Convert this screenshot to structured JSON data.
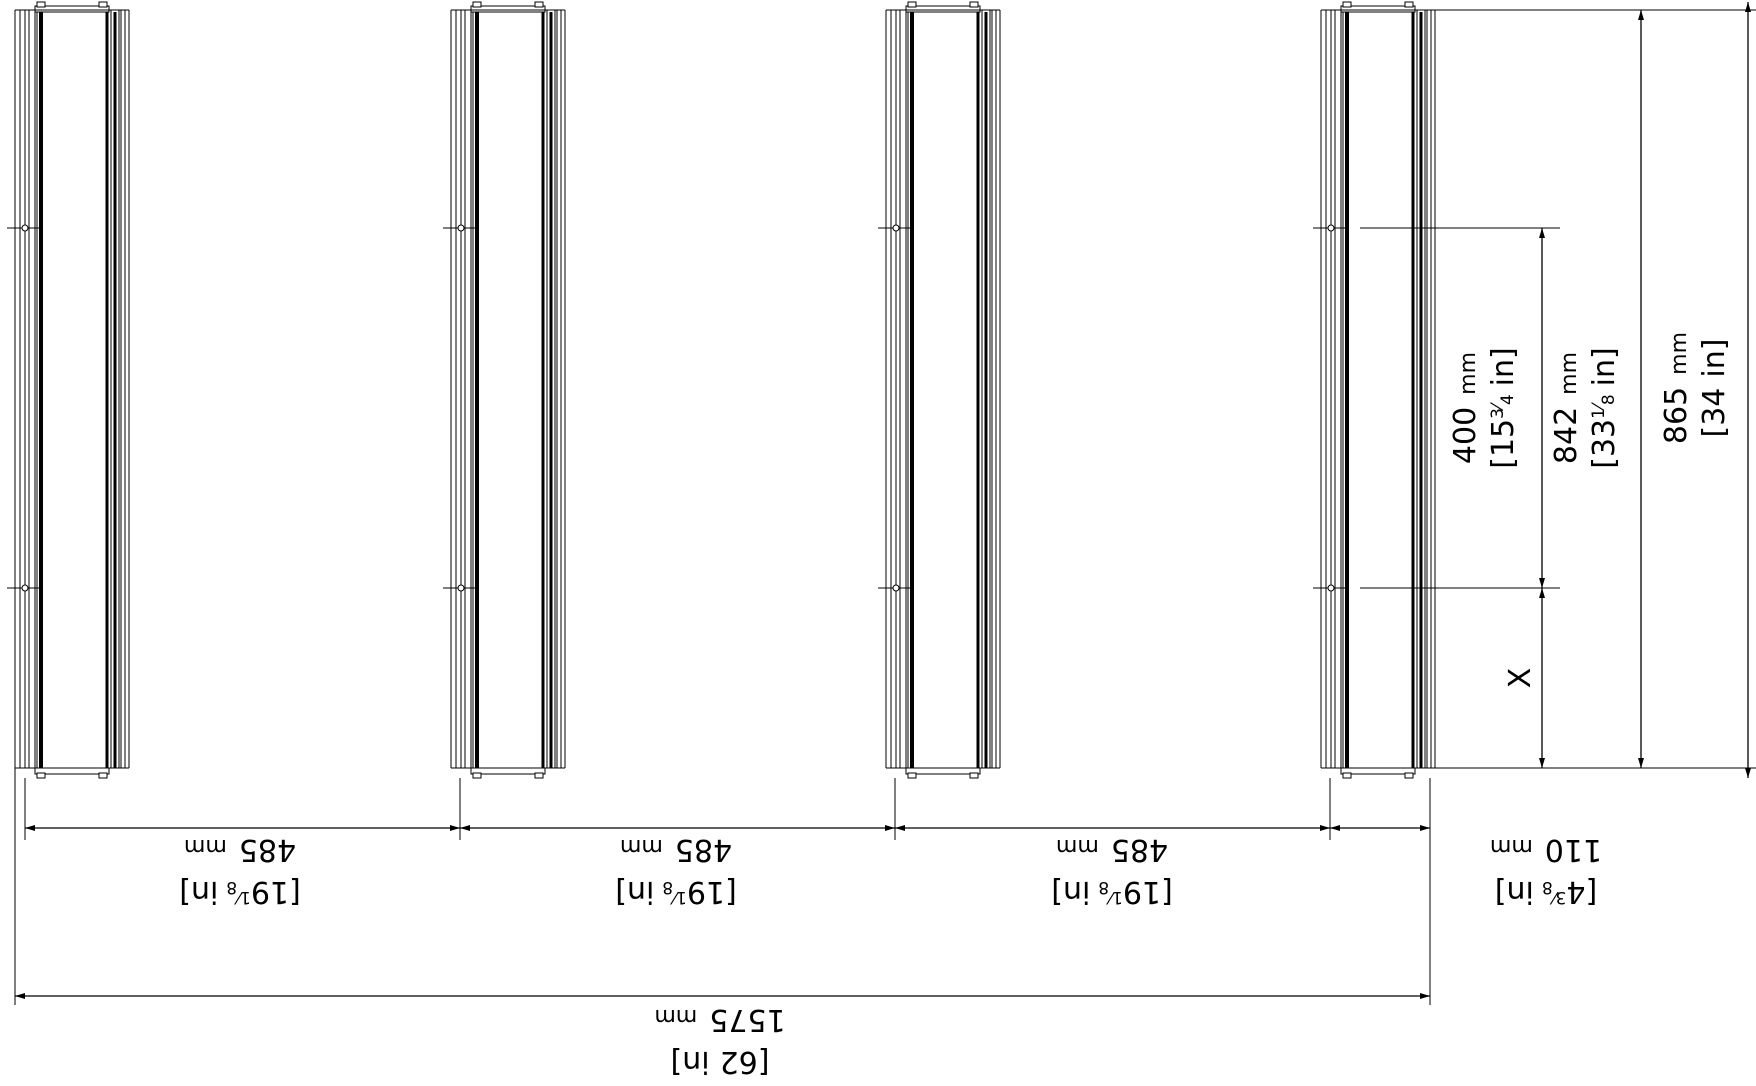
{
  "panels": [
    "panel-1",
    "panel-2",
    "panel-3",
    "panel-4"
  ],
  "dimensions": {
    "spacing": [
      {
        "value": "485",
        "unit": "mm",
        "inch_whole": "19",
        "inch_num": "1",
        "inch_den": "8",
        "inch_unit": "in"
      },
      {
        "value": "485",
        "unit": "mm",
        "inch_whole": "19",
        "inch_num": "1",
        "inch_den": "8",
        "inch_unit": "in"
      },
      {
        "value": "485",
        "unit": "mm",
        "inch_whole": "19",
        "inch_num": "1",
        "inch_den": "8",
        "inch_unit": "in"
      }
    ],
    "end_offset": {
      "value": "110",
      "unit": "mm",
      "inch_whole": "4",
      "inch_num": "3",
      "inch_den": "8",
      "inch_unit": "in"
    },
    "overall_width": {
      "value": "1575",
      "unit": "mm",
      "inch_whole": "62",
      "inch_unit": "in"
    },
    "mount_spacing": {
      "value": "400",
      "unit": "mm",
      "inch_whole": "15",
      "inch_num": "3",
      "inch_den": "4",
      "inch_unit": "in"
    },
    "mount_span": {
      "value": "842",
      "unit": "mm",
      "inch_whole": "33",
      "inch_num": "1",
      "inch_den": "8",
      "inch_unit": "in"
    },
    "overall_height": {
      "value": "865",
      "unit": "mm",
      "inch_whole": "34",
      "inch_unit": "in"
    },
    "variable": {
      "label": "X"
    }
  }
}
